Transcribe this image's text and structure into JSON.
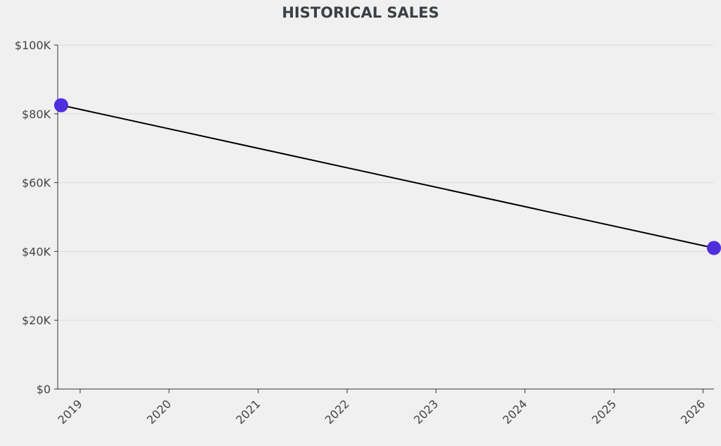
{
  "chart_data": {
    "type": "line",
    "title": "HISTORICAL SALES",
    "xlabel": "",
    "ylabel": "",
    "x_ticks": [
      "2019",
      "2020",
      "2021",
      "2022",
      "2023",
      "2024",
      "2025",
      "2026"
    ],
    "y_ticks": [
      "$0",
      "$20K",
      "$40K",
      "$60K",
      "$80K",
      "$100K"
    ],
    "ylim": [
      0,
      100000
    ],
    "xlim": [
      "2018-10-01",
      "2026-02-15"
    ],
    "grid": "horizontal",
    "legend": "none",
    "series": [
      {
        "points": [
          {
            "x": "2018-10-15",
            "y": 82500
          },
          {
            "x": "2026-02-15",
            "y": 41000
          }
        ]
      }
    ],
    "colors": {
      "line": "#000000",
      "marker": "#4f2edb",
      "grid": "#dcdcdc",
      "axis": "#333333",
      "background": "#f0f0f0"
    }
  }
}
